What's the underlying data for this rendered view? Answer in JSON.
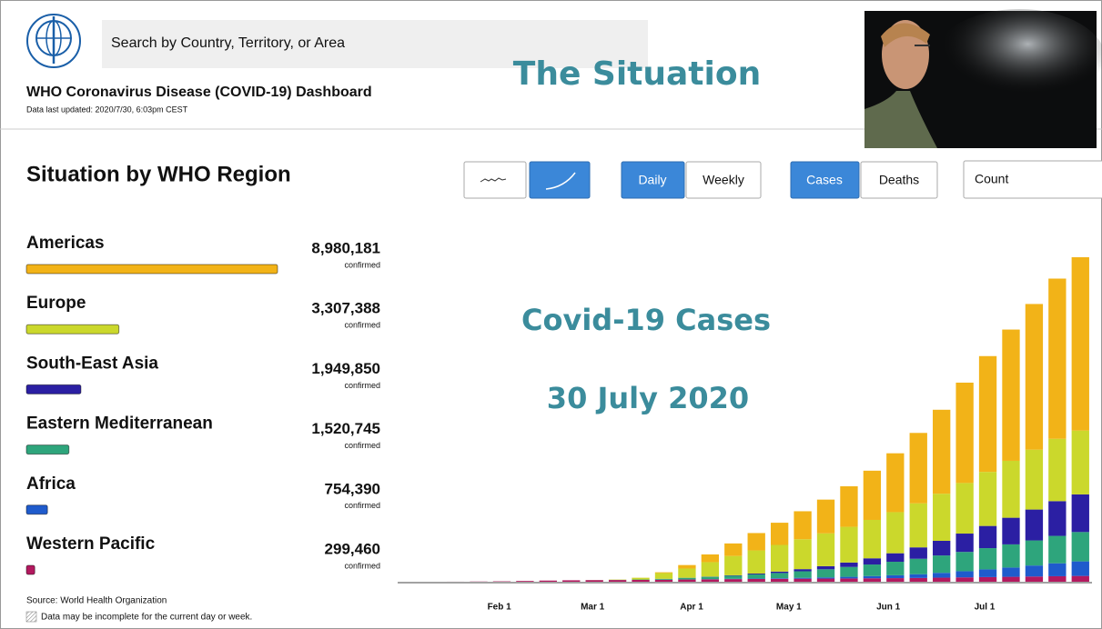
{
  "header": {
    "search_placeholder": "Search by Country, Territory, or Area",
    "title": "WHO Coronavirus Disease (COVID-19) Dashboard",
    "updated": "Data last updated: 2020/7/30, 6:03pm CEST"
  },
  "overlay": {
    "heading": "The Situation",
    "caption": "Covid-19 Cases",
    "date": "30 July 2020"
  },
  "controls": {
    "daily": "Daily",
    "weekly": "Weekly",
    "cases": "Cases",
    "deaths": "Deaths",
    "metric": "Count"
  },
  "regions": {
    "title": "Situation by WHO Region",
    "unit": "confirmed",
    "items": [
      {
        "name": "Americas",
        "value": 8980181,
        "label": "8,980,181",
        "color": "#f2b318"
      },
      {
        "name": "Europe",
        "value": 3307388,
        "label": "3,307,388",
        "color": "#cbd82c"
      },
      {
        "name": "South-East Asia",
        "value": 1949850,
        "label": "1,949,850",
        "color": "#2b1fa3"
      },
      {
        "name": "Eastern Mediterranean",
        "value": 1520745,
        "label": "1,520,745",
        "color": "#2ea57c"
      },
      {
        "name": "Africa",
        "value": 754390,
        "label": "754,390",
        "color": "#1f5bcc"
      },
      {
        "name": "Western Pacific",
        "value": 299460,
        "label": "299,460",
        "color": "#b3195f"
      }
    ]
  },
  "chart_data": {
    "type": "bar",
    "stacked": true,
    "categories": [
      null,
      null,
      null,
      null,
      null,
      null,
      null,
      null,
      null,
      null,
      null,
      null,
      null,
      null,
      null,
      null,
      null,
      null,
      null,
      null,
      null,
      null,
      null,
      null,
      null,
      null,
      null,
      null,
      null,
      null
    ],
    "xticks": [
      {
        "value": 3.89,
        "label": "Feb 1"
      },
      {
        "value": 7.92,
        "label": "Mar 1"
      },
      {
        "value": 12.2,
        "label": "Apr 1"
      },
      {
        "value": 16.4,
        "label": "May 1"
      },
      {
        "value": 20.7,
        "label": "Jun 1"
      },
      {
        "value": 24.86,
        "label": "Jul 1"
      }
    ],
    "series": [
      {
        "name": "Western Pacific",
        "color": "#b3195f",
        "values": [
          0,
          100,
          2000,
          10000,
          20000,
          40000,
          60000,
          75000,
          84000,
          90000,
          95000,
          102000,
          115000,
          125000,
          135000,
          145000,
          150000,
          157000,
          163000,
          170000,
          178000,
          185000,
          195000,
          210000,
          225000,
          240000,
          255000,
          270000,
          285000,
          299460
        ]
      },
      {
        "name": "Africa",
        "color": "#1f5bcc",
        "values": [
          0,
          0,
          0,
          0,
          0,
          0,
          0,
          0,
          0,
          0,
          100,
          1000,
          4000,
          8000,
          14000,
          22000,
          32000,
          45000,
          62000,
          85000,
          115000,
          150000,
          195000,
          250000,
          320000,
          400000,
          480000,
          570000,
          670000,
          754390
        ]
      },
      {
        "name": "Eastern Mediterranean",
        "color": "#2ea57c",
        "values": [
          0,
          0,
          0,
          0,
          0,
          0,
          0,
          100,
          2000,
          8000,
          20000,
          45000,
          80000,
          120000,
          160000,
          210000,
          270000,
          340000,
          420000,
          510000,
          600000,
          700000,
          800000,
          900000,
          1000000,
          1100000,
          1200000,
          1300000,
          1420000,
          1520745
        ]
      },
      {
        "name": "South-East Asia",
        "color": "#2b1fa3",
        "values": [
          0,
          0,
          0,
          0,
          0,
          0,
          0,
          0,
          0,
          100,
          500,
          2000,
          5000,
          12000,
          25000,
          45000,
          75000,
          110000,
          160000,
          230000,
          320000,
          440000,
          590000,
          760000,
          950000,
          1150000,
          1380000,
          1600000,
          1800000,
          1949850
        ]
      },
      {
        "name": "Europe",
        "color": "#cbd82c",
        "values": [
          0,
          0,
          0,
          0,
          0,
          0,
          0,
          100,
          2000,
          15000,
          90000,
          300000,
          480000,
          750000,
          1000000,
          1200000,
          1380000,
          1550000,
          1700000,
          1850000,
          1990000,
          2130000,
          2280000,
          2440000,
          2620000,
          2800000,
          2950000,
          3100000,
          3230000,
          3307388
        ]
      },
      {
        "name": "Americas",
        "color": "#f2b318",
        "values": [
          0,
          0,
          0,
          0,
          0,
          0,
          0,
          0,
          100,
          500,
          3000,
          40000,
          180000,
          400000,
          650000,
          900000,
          1150000,
          1450000,
          1750000,
          2100000,
          2550000,
          3050000,
          3650000,
          4350000,
          5200000,
          6000000,
          6800000,
          7550000,
          8300000,
          8980181
        ]
      }
    ]
  },
  "footer": {
    "source": "Source: World Health Organization",
    "note": "Data may be incomplete for the current day or week."
  }
}
